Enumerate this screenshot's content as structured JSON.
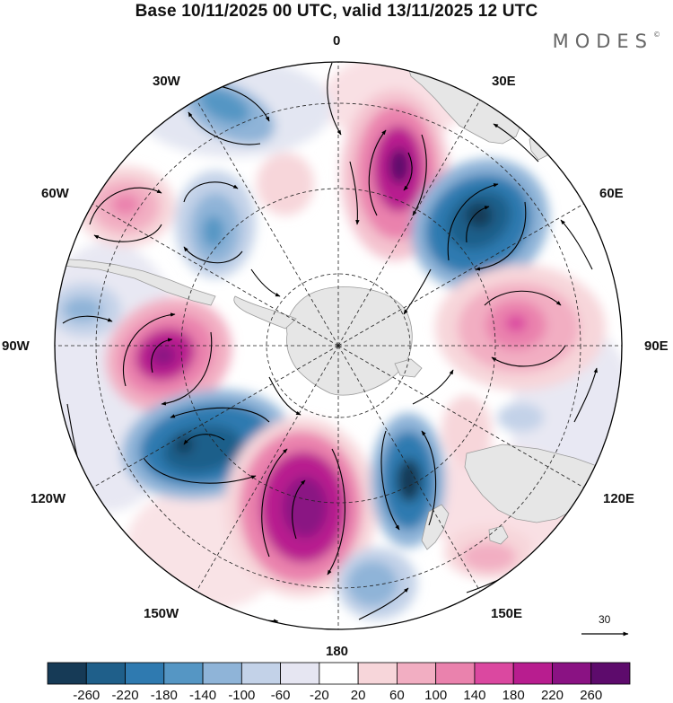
{
  "title": "Base 10/11/2025 00 UTC, valid 13/11/2025 12 UTC",
  "brand": "MODES",
  "brand_mark": "©",
  "meridian_labels": {
    "lon_0": "0",
    "lon_30e": "30E",
    "lon_60e": "60E",
    "lon_90e": "90E",
    "lon_120e": "120E",
    "lon_150e": "150E",
    "lon_180": "180",
    "lon_150w": "150W",
    "lon_120w": "120W",
    "lon_90w": "90W",
    "lon_60w": "60W",
    "lon_30w": "30W"
  },
  "reference_vector": {
    "label": "30"
  },
  "colorbar": {
    "labels": [
      "-260",
      "-220",
      "-180",
      "-140",
      "-100",
      "-60",
      "-20",
      "20",
      "60",
      "100",
      "140",
      "180",
      "220",
      "260"
    ],
    "colors": [
      "#163a56",
      "#1f5f8a",
      "#2f7ab0",
      "#5596c4",
      "#8fb4d8",
      "#c3d2e8",
      "#e6e6f2",
      "#ffffff",
      "#f7d6da",
      "#f2aec2",
      "#ea82ad",
      "#db48a0",
      "#b81d8f",
      "#8a1283",
      "#5d0b6c"
    ]
  },
  "colors": {
    "land": "#e6e6e6",
    "coast": "#9a9a9a",
    "grid": "#222222",
    "vector": "#000000"
  }
}
